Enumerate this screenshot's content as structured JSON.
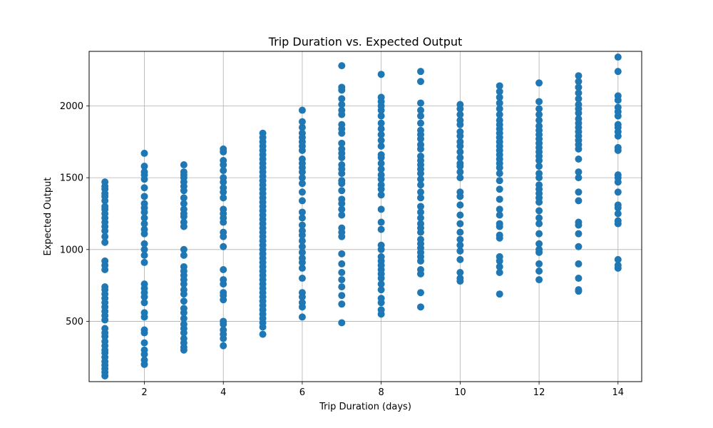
{
  "chart_data": {
    "type": "scatter",
    "title": "Trip Duration vs. Expected Output",
    "xlabel": "Trip Duration (days)",
    "ylabel": "Expected Output",
    "xlim": [
      0.6,
      14.6
    ],
    "ylim": [
      80,
      2380
    ],
    "x_ticks": [
      2,
      4,
      6,
      8,
      10,
      12,
      14
    ],
    "y_ticks": [
      500,
      1000,
      1500,
      2000
    ],
    "grid": true,
    "marker_color": "#1f77b4",
    "series": [
      {
        "points": [
          {
            "x": 1,
            "values": [
              120,
              145,
              170,
              195,
              220,
              250,
              280,
              300,
              330,
              360,
              395,
              420,
              450,
              510,
              540,
              570,
              600,
              630,
              660,
              690,
              720,
              740,
              860,
              890,
              920,
              1050,
              1090,
              1130,
              1160,
              1190,
              1220,
              1250,
              1280,
              1300,
              1340,
              1370,
              1390,
              1420,
              1440,
              1470
            ]
          },
          {
            "x": 2,
            "values": [
              200,
              230,
              270,
              300,
              350,
              420,
              440,
              530,
              560,
              630,
              670,
              700,
              730,
              760,
              910,
              960,
              1000,
              1040,
              1110,
              1140,
              1180,
              1220,
              1260,
              1290,
              1320,
              1370,
              1430,
              1490,
              1520,
              1540,
              1580,
              1670
            ]
          },
          {
            "x": 3,
            "values": [
              300,
              320,
              350,
              380,
              420,
              450,
              480,
              520,
              560,
              590,
              640,
              690,
              720,
              760,
              790,
              820,
              850,
              880,
              960,
              1000,
              1160,
              1190,
              1230,
              1250,
              1280,
              1320,
              1360,
              1410,
              1440,
              1470,
              1500,
              1520,
              1540,
              1590
            ]
          },
          {
            "x": 4,
            "values": [
              330,
              380,
              410,
              440,
              480,
              500,
              650,
              680,
              700,
              760,
              790,
              860,
              1020,
              1090,
              1120,
              1190,
              1220,
              1250,
              1280,
              1360,
              1400,
              1430,
              1470,
              1500,
              1550,
              1590,
              1620,
              1680,
              1700
            ]
          },
          {
            "x": 5,
            "values": [
              410,
              460,
              490,
              520,
              550,
              580,
              610,
              640,
              670,
              700,
              730,
              760,
              790,
              820,
              850,
              880,
              910,
              940,
              970,
              1000,
              1030,
              1060,
              1090,
              1120,
              1150,
              1180,
              1210,
              1240,
              1270,
              1300,
              1330,
              1360,
              1390,
              1420,
              1450,
              1480,
              1510,
              1540,
              1570,
              1600,
              1630,
              1660,
              1690,
              1720,
              1750,
              1780,
              1810
            ]
          },
          {
            "x": 6,
            "values": [
              530,
              600,
              630,
              670,
              700,
              800,
              870,
              910,
              940,
              980,
              1020,
              1060,
              1100,
              1130,
              1170,
              1220,
              1260,
              1340,
              1400,
              1460,
              1500,
              1540,
              1570,
              1600,
              1630,
              1690,
              1720,
              1750,
              1780,
              1810,
              1850,
              1890,
              1970
            ]
          },
          {
            "x": 7,
            "values": [
              490,
              620,
              680,
              740,
              790,
              840,
              900,
              970,
              1090,
              1120,
              1150,
              1240,
              1280,
              1320,
              1350,
              1410,
              1460,
              1480,
              1530,
              1560,
              1590,
              1640,
              1670,
              1700,
              1740,
              1810,
              1840,
              1870,
              1940,
              1970,
              2010,
              2050,
              2110,
              2130,
              2280
            ]
          },
          {
            "x": 8,
            "values": [
              550,
              580,
              630,
              660,
              720,
              760,
              800,
              830,
              860,
              890,
              920,
              950,
              1000,
              1030,
              1140,
              1190,
              1280,
              1380,
              1420,
              1450,
              1490,
              1520,
              1560,
              1600,
              1640,
              1660,
              1720,
              1760,
              1800,
              1840,
              1880,
              1930,
              1970,
              2000,
              2030,
              2060,
              2220
            ]
          },
          {
            "x": 9,
            "values": [
              600,
              700,
              830,
              860,
              920,
              950,
              980,
              1010,
              1040,
              1070,
              1120,
              1150,
              1180,
              1220,
              1260,
              1300,
              1360,
              1400,
              1450,
              1490,
              1530,
              1560,
              1590,
              1620,
              1650,
              1700,
              1730,
              1770,
              1800,
              1830,
              1880,
              1930,
              1970,
              2020,
              2170,
              2240
            ]
          },
          {
            "x": 10,
            "values": [
              780,
              800,
              840,
              930,
              990,
              1030,
              1070,
              1120,
              1180,
              1240,
              1310,
              1370,
              1400,
              1500,
              1540,
              1580,
              1600,
              1640,
              1680,
              1720,
              1750,
              1790,
              1820,
              1870,
              1900,
              1940,
              1980,
              2010
            ]
          },
          {
            "x": 11,
            "values": [
              690,
              840,
              880,
              920,
              950,
              1080,
              1100,
              1160,
              1180,
              1240,
              1280,
              1350,
              1420,
              1480,
              1530,
              1570,
              1600,
              1630,
              1660,
              1690,
              1720,
              1750,
              1780,
              1810,
              1840,
              1870,
              1900,
              1940,
              1980,
              2020,
              2060,
              2100,
              2140
            ]
          },
          {
            "x": 12,
            "values": [
              790,
              850,
              900,
              980,
              1000,
              1040,
              1110,
              1180,
              1220,
              1270,
              1330,
              1360,
              1390,
              1420,
              1450,
              1500,
              1530,
              1580,
              1620,
              1650,
              1680,
              1710,
              1740,
              1770,
              1800,
              1830,
              1860,
              1900,
              1940,
              1980,
              2030,
              2160
            ]
          },
          {
            "x": 13,
            "values": [
              710,
              720,
              800,
              900,
              1020,
              1110,
              1170,
              1190,
              1340,
              1400,
              1500,
              1540,
              1630,
              1700,
              1730,
              1760,
              1790,
              1820,
              1850,
              1880,
              1910,
              1950,
              1980,
              2010,
              2050,
              2090,
              2130,
              2170,
              2210
            ]
          },
          {
            "x": 14,
            "values": [
              870,
              890,
              930,
              1180,
              1200,
              1250,
              1290,
              1310,
              1400,
              1470,
              1500,
              1520,
              1690,
              1710,
              1790,
              1820,
              1850,
              1870,
              1930,
              1960,
              1990,
              2040,
              2070,
              2240,
              2340
            ]
          }
        ]
      }
    ]
  }
}
